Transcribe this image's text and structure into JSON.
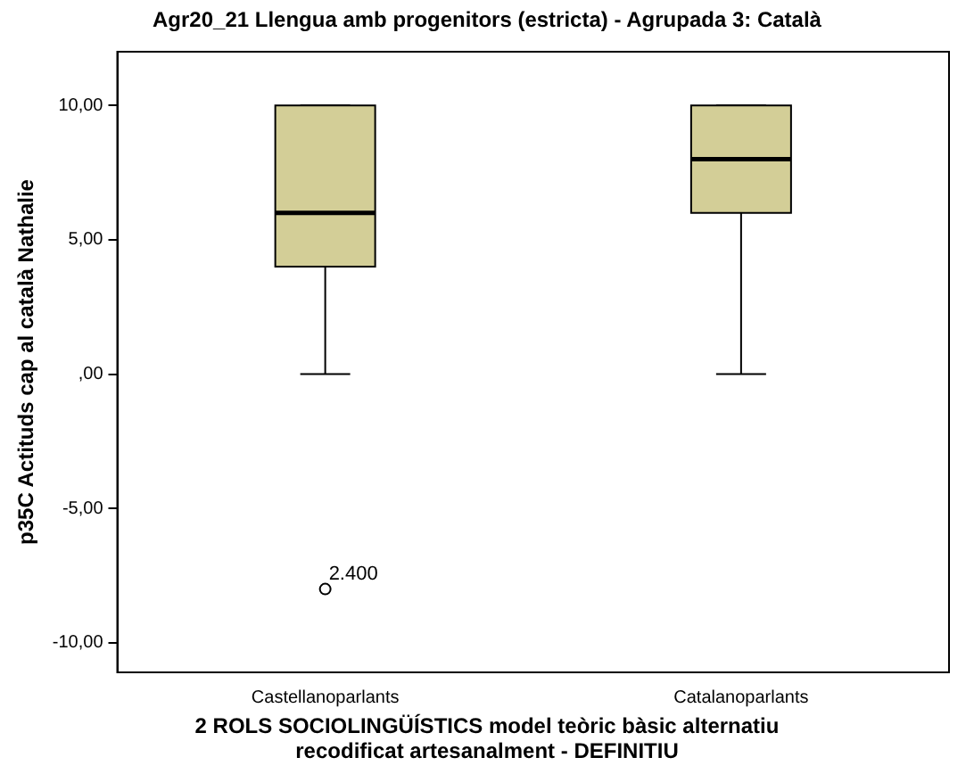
{
  "chart_data": {
    "type": "box",
    "title": "Agr20_21 Llengua amb progenitors (estricta) - Agrupada 3: Català",
    "xlabel": "2 ROLS SOCIOLINGÜÍSTICS model teòric bàsic alternatiu recodificat artesanalment - DEFINITIU",
    "ylabel": "p35C Actituds cap al català Nathalie",
    "categories": [
      "Castellanoparlants",
      "Catalanoparlants"
    ],
    "color": "#d3ce97",
    "boxes": [
      {
        "low": 0,
        "q1": 4,
        "median": 6,
        "q3": 10,
        "high": 10,
        "outliers": [
          -8
        ]
      },
      {
        "low": 0,
        "q1": 6,
        "median": 8,
        "q3": 10,
        "high": 10
      }
    ],
    "ylim": [
      -11.1,
      12
    ],
    "yticks": [
      {
        "value": -10,
        "label": "-10,00"
      },
      {
        "value": -5,
        "label": "-5,00"
      },
      {
        "value": 0,
        "label": ",00"
      },
      {
        "value": 5,
        "label": "5,00"
      },
      {
        "value": 10,
        "label": "10,00"
      }
    ],
    "annotations": [
      "2.400"
    ],
    "grid": false,
    "legend": false
  }
}
